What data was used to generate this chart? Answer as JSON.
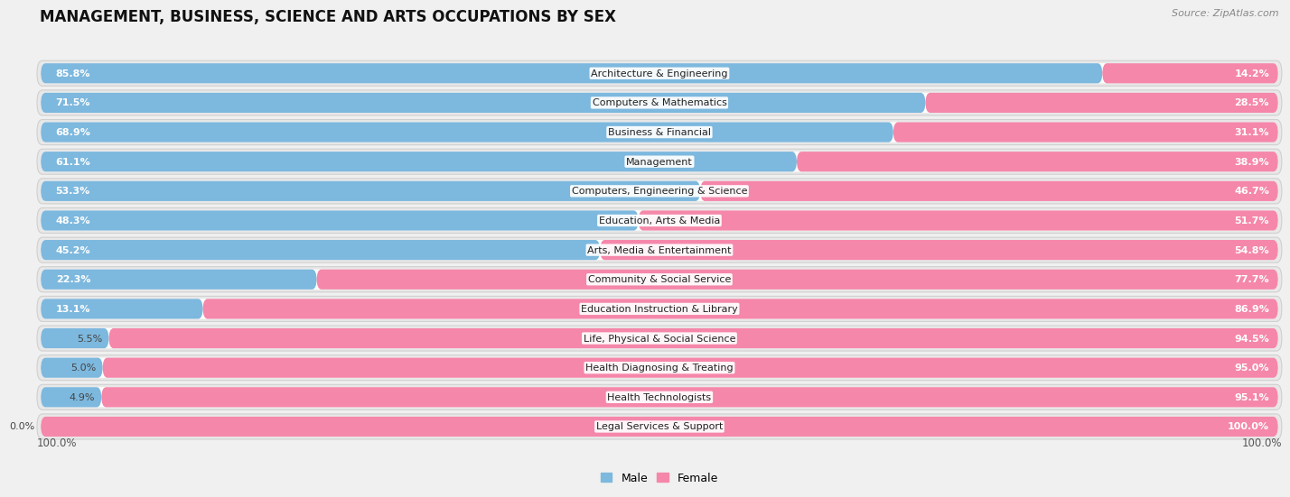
{
  "title": "MANAGEMENT, BUSINESS, SCIENCE AND ARTS OCCUPATIONS BY SEX",
  "source": "Source: ZipAtlas.com",
  "categories": [
    "Architecture & Engineering",
    "Computers & Mathematics",
    "Business & Financial",
    "Management",
    "Computers, Engineering & Science",
    "Education, Arts & Media",
    "Arts, Media & Entertainment",
    "Community & Social Service",
    "Education Instruction & Library",
    "Life, Physical & Social Science",
    "Health Diagnosing & Treating",
    "Health Technologists",
    "Legal Services & Support"
  ],
  "male_pct": [
    85.8,
    71.5,
    68.9,
    61.1,
    53.3,
    48.3,
    45.2,
    22.3,
    13.1,
    5.5,
    5.0,
    4.9,
    0.0
  ],
  "female_pct": [
    14.2,
    28.5,
    31.1,
    38.9,
    46.7,
    51.7,
    54.8,
    77.7,
    86.9,
    94.5,
    95.0,
    95.1,
    100.0
  ],
  "male_color": "#7db8de",
  "female_color": "#f587aa",
  "background_color": "#f0f0f0",
  "row_bg_color": "#e8e8e8",
  "bar_row_bg": "#ffffff",
  "title_fontsize": 12,
  "label_fontsize": 8.0,
  "pct_fontsize": 8.0,
  "tick_fontsize": 8.5,
  "legend_fontsize": 9,
  "source_fontsize": 8
}
